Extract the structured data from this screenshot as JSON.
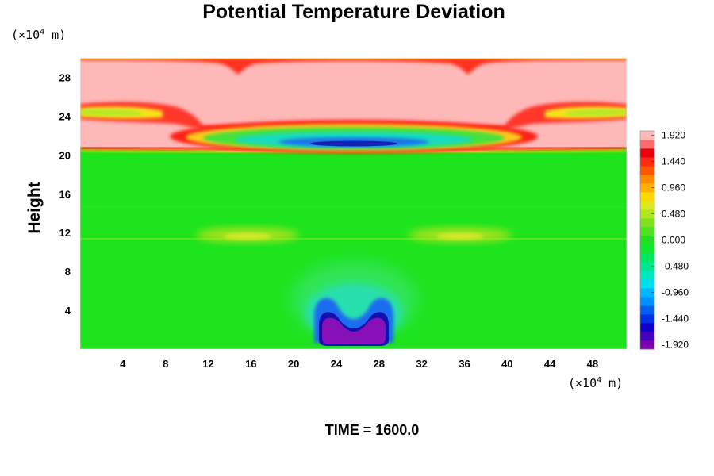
{
  "chart_data": {
    "type": "heatmap",
    "title": "Potential Temperature Deviation",
    "ylabel": "Height",
    "xlabel": "",
    "x_unit": {
      "prefix": "(×10",
      "exp": "4",
      "suffix": " m)"
    },
    "y_unit": {
      "prefix": "(×10",
      "exp": "4",
      "suffix": " m)"
    },
    "x_ticks": [
      "4",
      "8",
      "12",
      "16",
      "20",
      "24",
      "28",
      "32",
      "36",
      "40",
      "44",
      "48"
    ],
    "y_ticks": [
      "4",
      "8",
      "12",
      "16",
      "20",
      "24",
      "28"
    ],
    "xlim": [
      0,
      51.2
    ],
    "ylim": [
      0,
      30
    ],
    "colorbar": {
      "range": [
        -2.0,
        2.0
      ],
      "tick_labels": [
        "1.920",
        "1.440",
        "0.960",
        "0.480",
        "0.000",
        "-0.480",
        "-0.960",
        "-1.440",
        "-1.920"
      ],
      "tick_values": [
        1.92,
        1.44,
        0.96,
        0.48,
        0.0,
        -0.48,
        -0.96,
        -1.44,
        -1.92
      ]
    },
    "features": [
      {
        "name": "cold bubble",
        "x": 25.6,
        "y": 2.5,
        "value": -2.0
      },
      {
        "name": "cold anomaly aloft",
        "x": 25.6,
        "y": 21.5,
        "value": -1.2
      },
      {
        "name": "upper warm layer",
        "y_range": [
          20.5,
          30
        ],
        "value": 2.0
      },
      {
        "name": "warm band",
        "y": 22.5,
        "value": 1.5
      },
      {
        "name": "warm band",
        "y": 25.5,
        "value": 1.5
      },
      {
        "name": "weak warm lobe",
        "x": 16,
        "y": 11.8,
        "value": 0.4
      },
      {
        "name": "weak warm lobe",
        "x": 36,
        "y": 11.8,
        "value": 0.4
      }
    ],
    "time_label": "TIME = 1600.0"
  }
}
